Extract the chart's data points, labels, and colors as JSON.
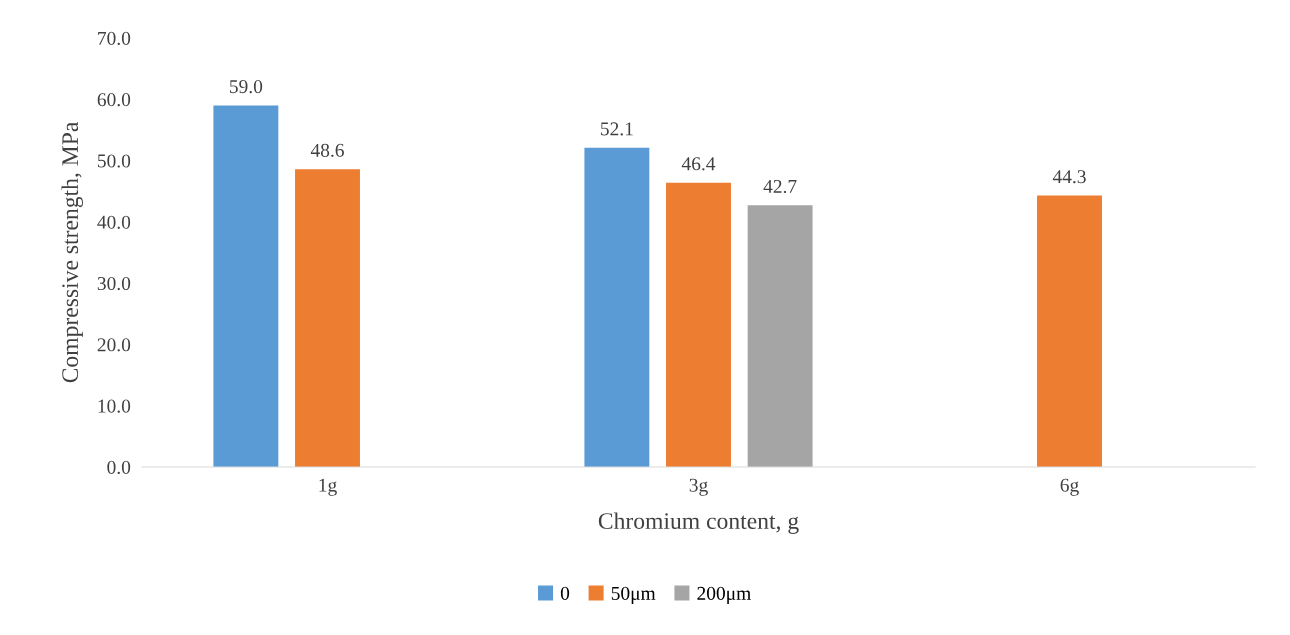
{
  "chart_data": {
    "type": "bar",
    "xlabel": "Chromium content, g",
    "ylabel": "Compressive strength, MPa",
    "categories": [
      "1g",
      "3g",
      "6g"
    ],
    "series": [
      {
        "name": "0",
        "color": "#5b9bd5",
        "values": [
          59.0,
          52.1,
          null
        ],
        "value_labels": [
          "59.0",
          "52.1",
          null
        ]
      },
      {
        "name": "50μm",
        "color": "#ed7d31",
        "values": [
          48.6,
          46.4,
          44.3
        ],
        "value_labels": [
          "48.6",
          "46.4",
          "44.3"
        ]
      },
      {
        "name": "200μm",
        "color": "#a5a5a5",
        "values": [
          null,
          42.7,
          null
        ],
        "value_labels": [
          null,
          "42.7",
          null
        ]
      }
    ],
    "ylim": [
      0,
      70
    ],
    "yticks": [
      {
        "value": 0,
        "label": "0.0"
      },
      {
        "value": 10,
        "label": "10.0"
      },
      {
        "value": 20,
        "label": "20.0"
      },
      {
        "value": 30,
        "label": "30.0"
      },
      {
        "value": 40,
        "label": "40.0"
      },
      {
        "value": 50,
        "label": "50.0"
      },
      {
        "value": 60,
        "label": "60.0"
      },
      {
        "value": 70,
        "label": "70.0"
      }
    ],
    "grid": false,
    "legend": "bottom"
  }
}
